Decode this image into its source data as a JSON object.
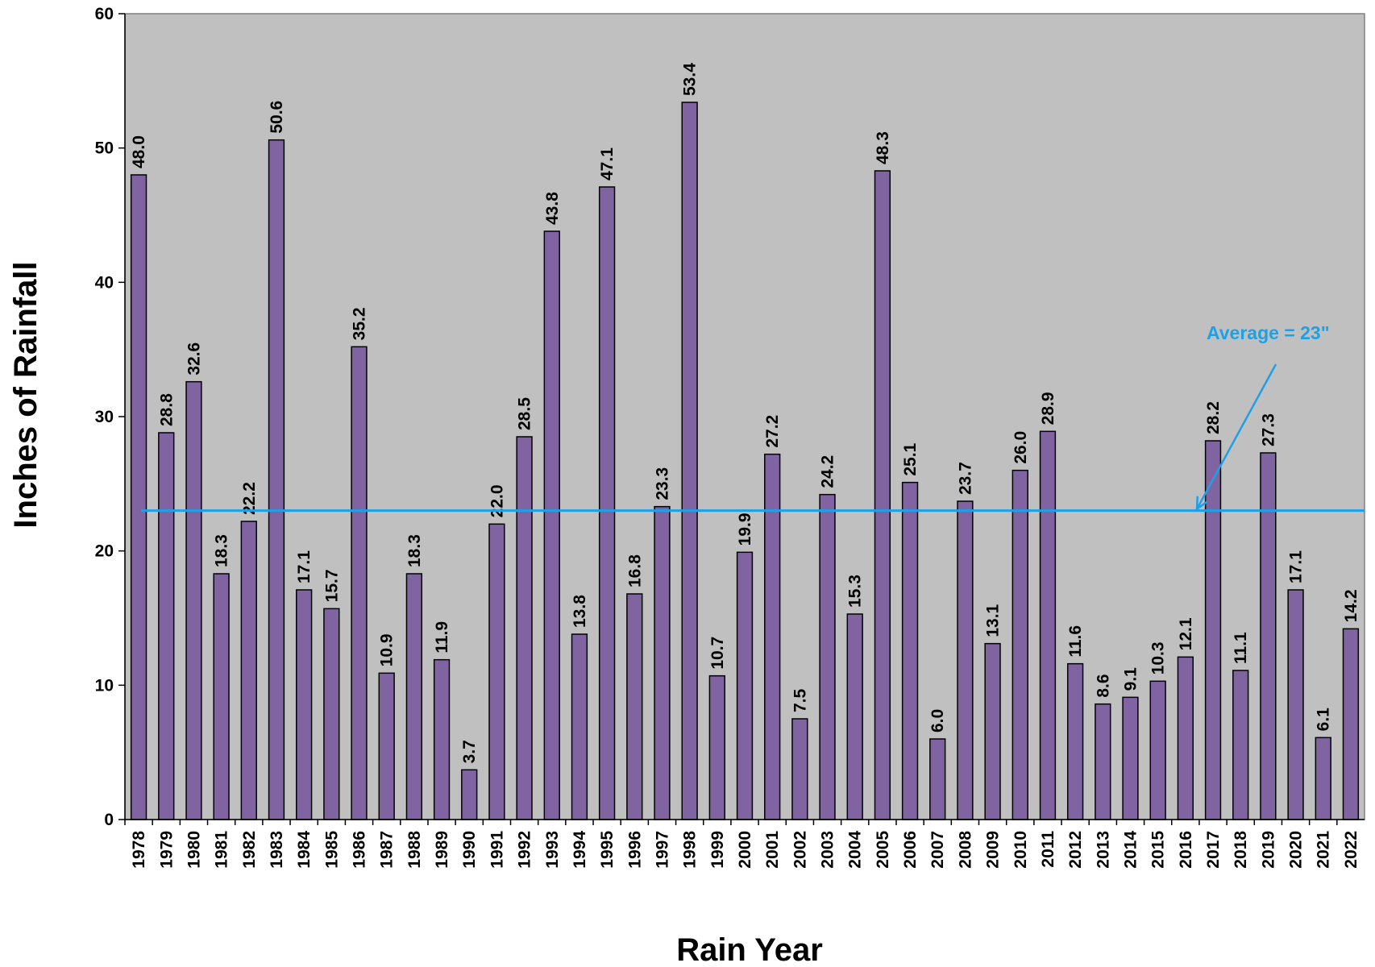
{
  "chart_data": {
    "type": "bar",
    "title": "",
    "xlabel": "Rain Year",
    "ylabel": "Inches of Rainfall",
    "ylim": [
      0,
      60
    ],
    "yticks": [
      "0",
      "10",
      "20",
      "30",
      "40",
      "50",
      "60"
    ],
    "grid": false,
    "categories": [
      "1978",
      "1979",
      "1980",
      "1981",
      "1982",
      "1983",
      "1984",
      "1985",
      "1986",
      "1987",
      "1988",
      "1989",
      "1990",
      "1991",
      "1992",
      "1993",
      "1994",
      "1995",
      "1996",
      "1997",
      "1998",
      "1999",
      "2000",
      "2001",
      "2002",
      "2003",
      "2004",
      "2005",
      "2006",
      "2007",
      "2008",
      "2009",
      "2010",
      "2011",
      "2012",
      "2013",
      "2014",
      "2015",
      "2016",
      "2017",
      "2018",
      "2019",
      "2020",
      "2021",
      "2022"
    ],
    "values": [
      48.0,
      28.8,
      32.6,
      18.3,
      22.2,
      50.6,
      17.1,
      15.7,
      35.2,
      10.9,
      18.3,
      11.9,
      3.7,
      22.0,
      28.5,
      43.8,
      13.8,
      47.1,
      16.8,
      23.3,
      53.4,
      10.7,
      19.9,
      27.2,
      7.5,
      24.2,
      15.3,
      48.3,
      25.1,
      6.0,
      23.7,
      13.1,
      26.0,
      28.9,
      11.6,
      8.6,
      9.1,
      10.3,
      12.1,
      28.2,
      11.1,
      27.3,
      17.1,
      6.1,
      14.2
    ],
    "data_labels": [
      "48.0",
      "28.8",
      "32.6",
      "18.3",
      "22.2",
      "50.6",
      "17.1",
      "15.7",
      "35.2",
      "10.9",
      "18.3",
      "11.9",
      "3.7",
      "22.0",
      "28.5",
      "43.8",
      "13.8",
      "47.1",
      "16.8",
      "23.3",
      "53.4",
      "10.7",
      "19.9",
      "27.2",
      "7.5",
      "24.2",
      "15.3",
      "48.3",
      "25.1",
      "6.0",
      "23.7",
      "13.1",
      "26.0",
      "28.9",
      "11.6",
      "8.6",
      "9.1",
      "10.3",
      "12.1",
      "28.2",
      "11.1",
      "27.3",
      "17.1",
      "6.1",
      "14.2"
    ],
    "average_line": {
      "value": 23,
      "label": "Average = 23\""
    },
    "colors": {
      "plot_background": "#c0c0c0",
      "bar_fill": "#8064a2",
      "bar_stroke": "#000000",
      "average_line": "#1ea0e6"
    }
  }
}
